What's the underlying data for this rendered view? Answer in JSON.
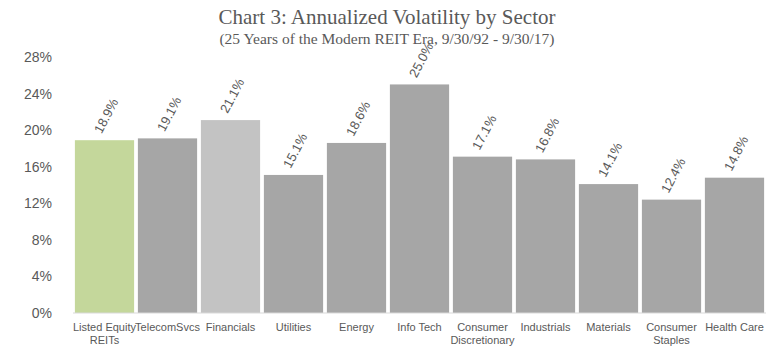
{
  "chart_data": {
    "type": "bar",
    "title": "Chart 3: Annualized Volatility by Sector",
    "subtitle": "(25 Years of the Modern REIT Era, 9/30/92 - 9/30/17)",
    "categories": [
      "Listed Equity REITs",
      "TelecomSvcs",
      "Financials",
      "Utilities",
      "Energy",
      "Info Tech",
      "Consumer Discretionary",
      "Industrials",
      "Materials",
      "Consumer Staples",
      "Health Care"
    ],
    "values": [
      18.9,
      19.1,
      21.1,
      15.1,
      18.6,
      25.0,
      17.1,
      16.8,
      14.1,
      12.4,
      14.8
    ],
    "value_labels": [
      "18.9%",
      "19.1%",
      "21.1%",
      "15.1%",
      "18.6%",
      "25.0%",
      "17.1%",
      "16.8%",
      "14.1%",
      "12.4%",
      "14.8%"
    ],
    "colors": [
      "#c4d79b",
      "#a6a6a6",
      "#c3c3c3",
      "#a6a6a6",
      "#a6a6a6",
      "#a6a6a6",
      "#a6a6a6",
      "#a6a6a6",
      "#a6a6a6",
      "#a6a6a6",
      "#a6a6a6"
    ],
    "ylim": [
      0,
      28
    ],
    "yticks": [
      {
        "value": 0,
        "label": "0%"
      },
      {
        "value": 4,
        "label": "4%"
      },
      {
        "value": 8,
        "label": "8%"
      },
      {
        "value": 12,
        "label": "12%"
      },
      {
        "value": 16,
        "label": "16%"
      },
      {
        "value": 20,
        "label": "20%"
      },
      {
        "value": 24,
        "label": "24%"
      },
      {
        "value": 28,
        "label": "28%"
      }
    ],
    "grid": false,
    "data_labels": true
  }
}
